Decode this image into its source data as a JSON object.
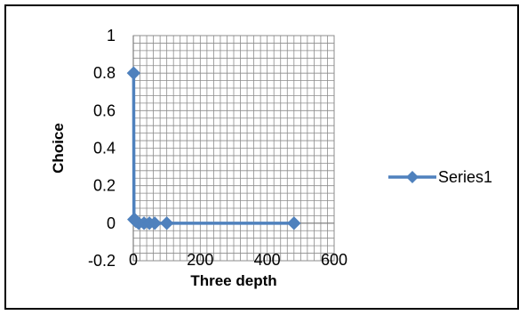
{
  "chart_data": {
    "type": "scatter",
    "xlabel": "Three depth",
    "ylabel": "Choice",
    "xlim": [
      0,
      600
    ],
    "ylim": [
      -0.2,
      1
    ],
    "xticks": [
      0,
      200,
      400,
      600
    ],
    "yticks": [
      -0.2,
      0,
      0.2,
      0.4,
      0.6,
      0.8,
      1
    ],
    "xtick_labels": [
      "0",
      "200",
      "400",
      "600"
    ],
    "ytick_labels": [
      "-0.2",
      "0",
      "0.2",
      "0.4",
      "0.6",
      "0.8",
      "1"
    ],
    "grid": true,
    "legend_position": "right",
    "series": [
      {
        "name": "Series1",
        "color": "#4f81bd",
        "marker": "diamond",
        "line": true,
        "x": [
          1,
          2,
          4,
          8,
          16,
          32,
          48,
          64,
          100,
          480
        ],
        "y": [
          0.8,
          0.02,
          0.02,
          0.01,
          0.0,
          0.0,
          0.0,
          0.0,
          0.0,
          0.0
        ]
      }
    ]
  }
}
